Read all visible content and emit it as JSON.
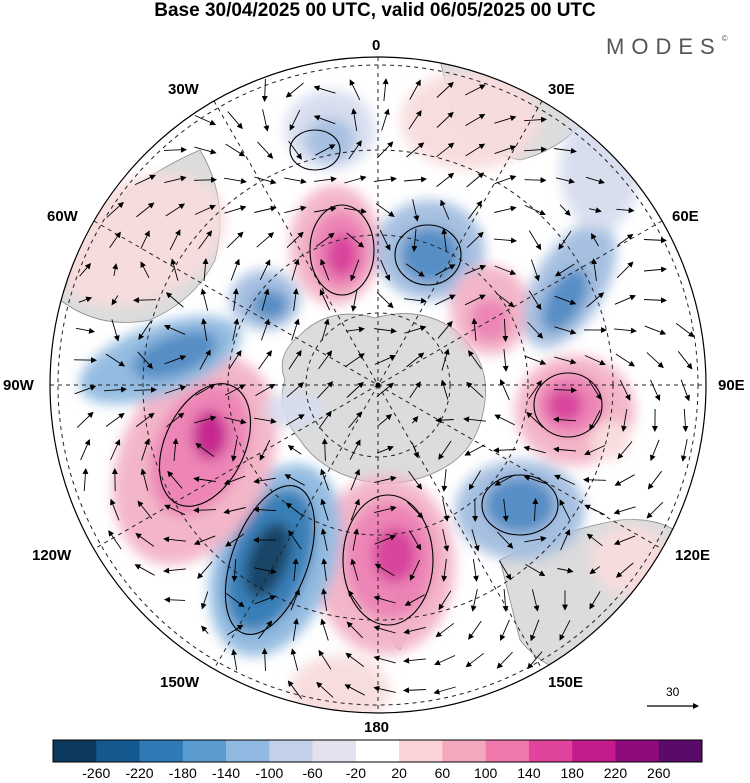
{
  "title": "Base 30/04/2025 00 UTC, valid 06/05/2025 00 UTC",
  "brand": "MODES",
  "brand_mark": "©",
  "longitude_labels": {
    "top": "0",
    "bottom": "180",
    "left": "90W",
    "right": "90E",
    "nw1": "30W",
    "nw2": "60W",
    "ne1": "30E",
    "ne2": "60E",
    "sw1": "120W",
    "sw2": "150W",
    "se1": "120E",
    "se2": "150E"
  },
  "vector_scale": "30",
  "colorbar": {
    "ticks": [
      "-260",
      "-220",
      "-180",
      "-140",
      "-100",
      "-60",
      "-20",
      "20",
      "60",
      "100",
      "140",
      "180",
      "220",
      "260"
    ],
    "colors": [
      "#0c3a5e",
      "#14598f",
      "#2f79b5",
      "#5a9ccf",
      "#8fb9e0",
      "#c4d0ea",
      "#e4e1f1",
      "#ffffff",
      "#f9d3d5",
      "#f4a8bd",
      "#ef78ac",
      "#e0449c",
      "#c41b8c",
      "#8e0a7d",
      "#5a0a68"
    ]
  },
  "map": {
    "projection": "south-polar-stereographic",
    "field": "height anomaly",
    "anomaly_colors": {
      "strong_neg": "#1f5f91",
      "mid_neg": "#4d88c2",
      "weak_neg": "#a3bde0",
      "faint_neg": "#d7ddef",
      "faint_pos": "#f8dcdd",
      "weak_pos": "#f3b3c6",
      "mid_pos": "#ec7fb3",
      "strong_pos": "#d63a97"
    },
    "land_color": "#d9d9d9"
  }
}
